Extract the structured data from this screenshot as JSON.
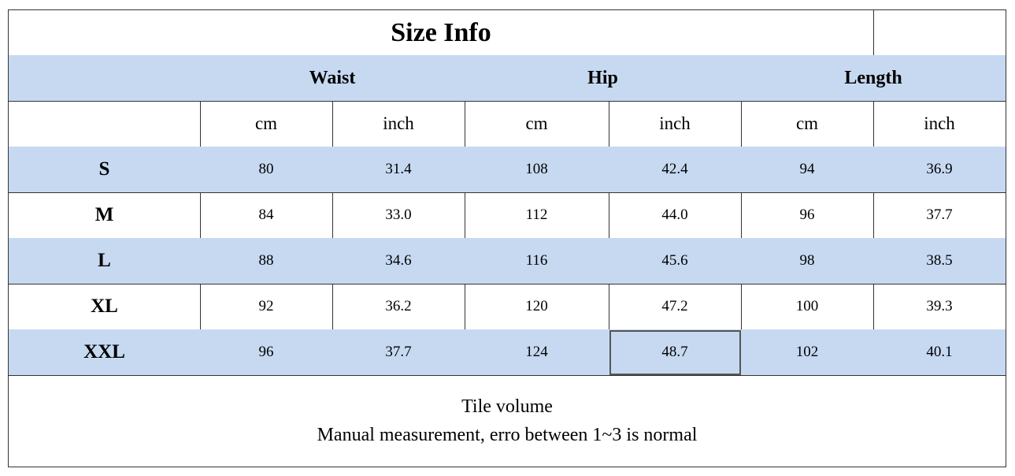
{
  "title": "Size Info",
  "groups": [
    "Waist",
    "Hip",
    "Length"
  ],
  "units": [
    "cm",
    "inch",
    "cm",
    "inch",
    "cm",
    "inch"
  ],
  "rows": [
    {
      "size": "S",
      "values": [
        "80",
        "31.4",
        "108",
        "42.4",
        "94",
        "36.9"
      ]
    },
    {
      "size": "M",
      "values": [
        "84",
        "33.0",
        "112",
        "44.0",
        "96",
        "37.7"
      ]
    },
    {
      "size": "L",
      "values": [
        "88",
        "34.6",
        "116",
        "45.6",
        "98",
        "38.5"
      ]
    },
    {
      "size": "XL",
      "values": [
        "92",
        "36.2",
        "120",
        "47.2",
        "100",
        "39.3"
      ]
    },
    {
      "size": "XXL",
      "values": [
        "96",
        "37.7",
        "124",
        "48.7",
        "102",
        "40.1"
      ]
    }
  ],
  "footer": [
    "Tile volume",
    "Manual measurement, erro between 1~3 is normal"
  ]
}
